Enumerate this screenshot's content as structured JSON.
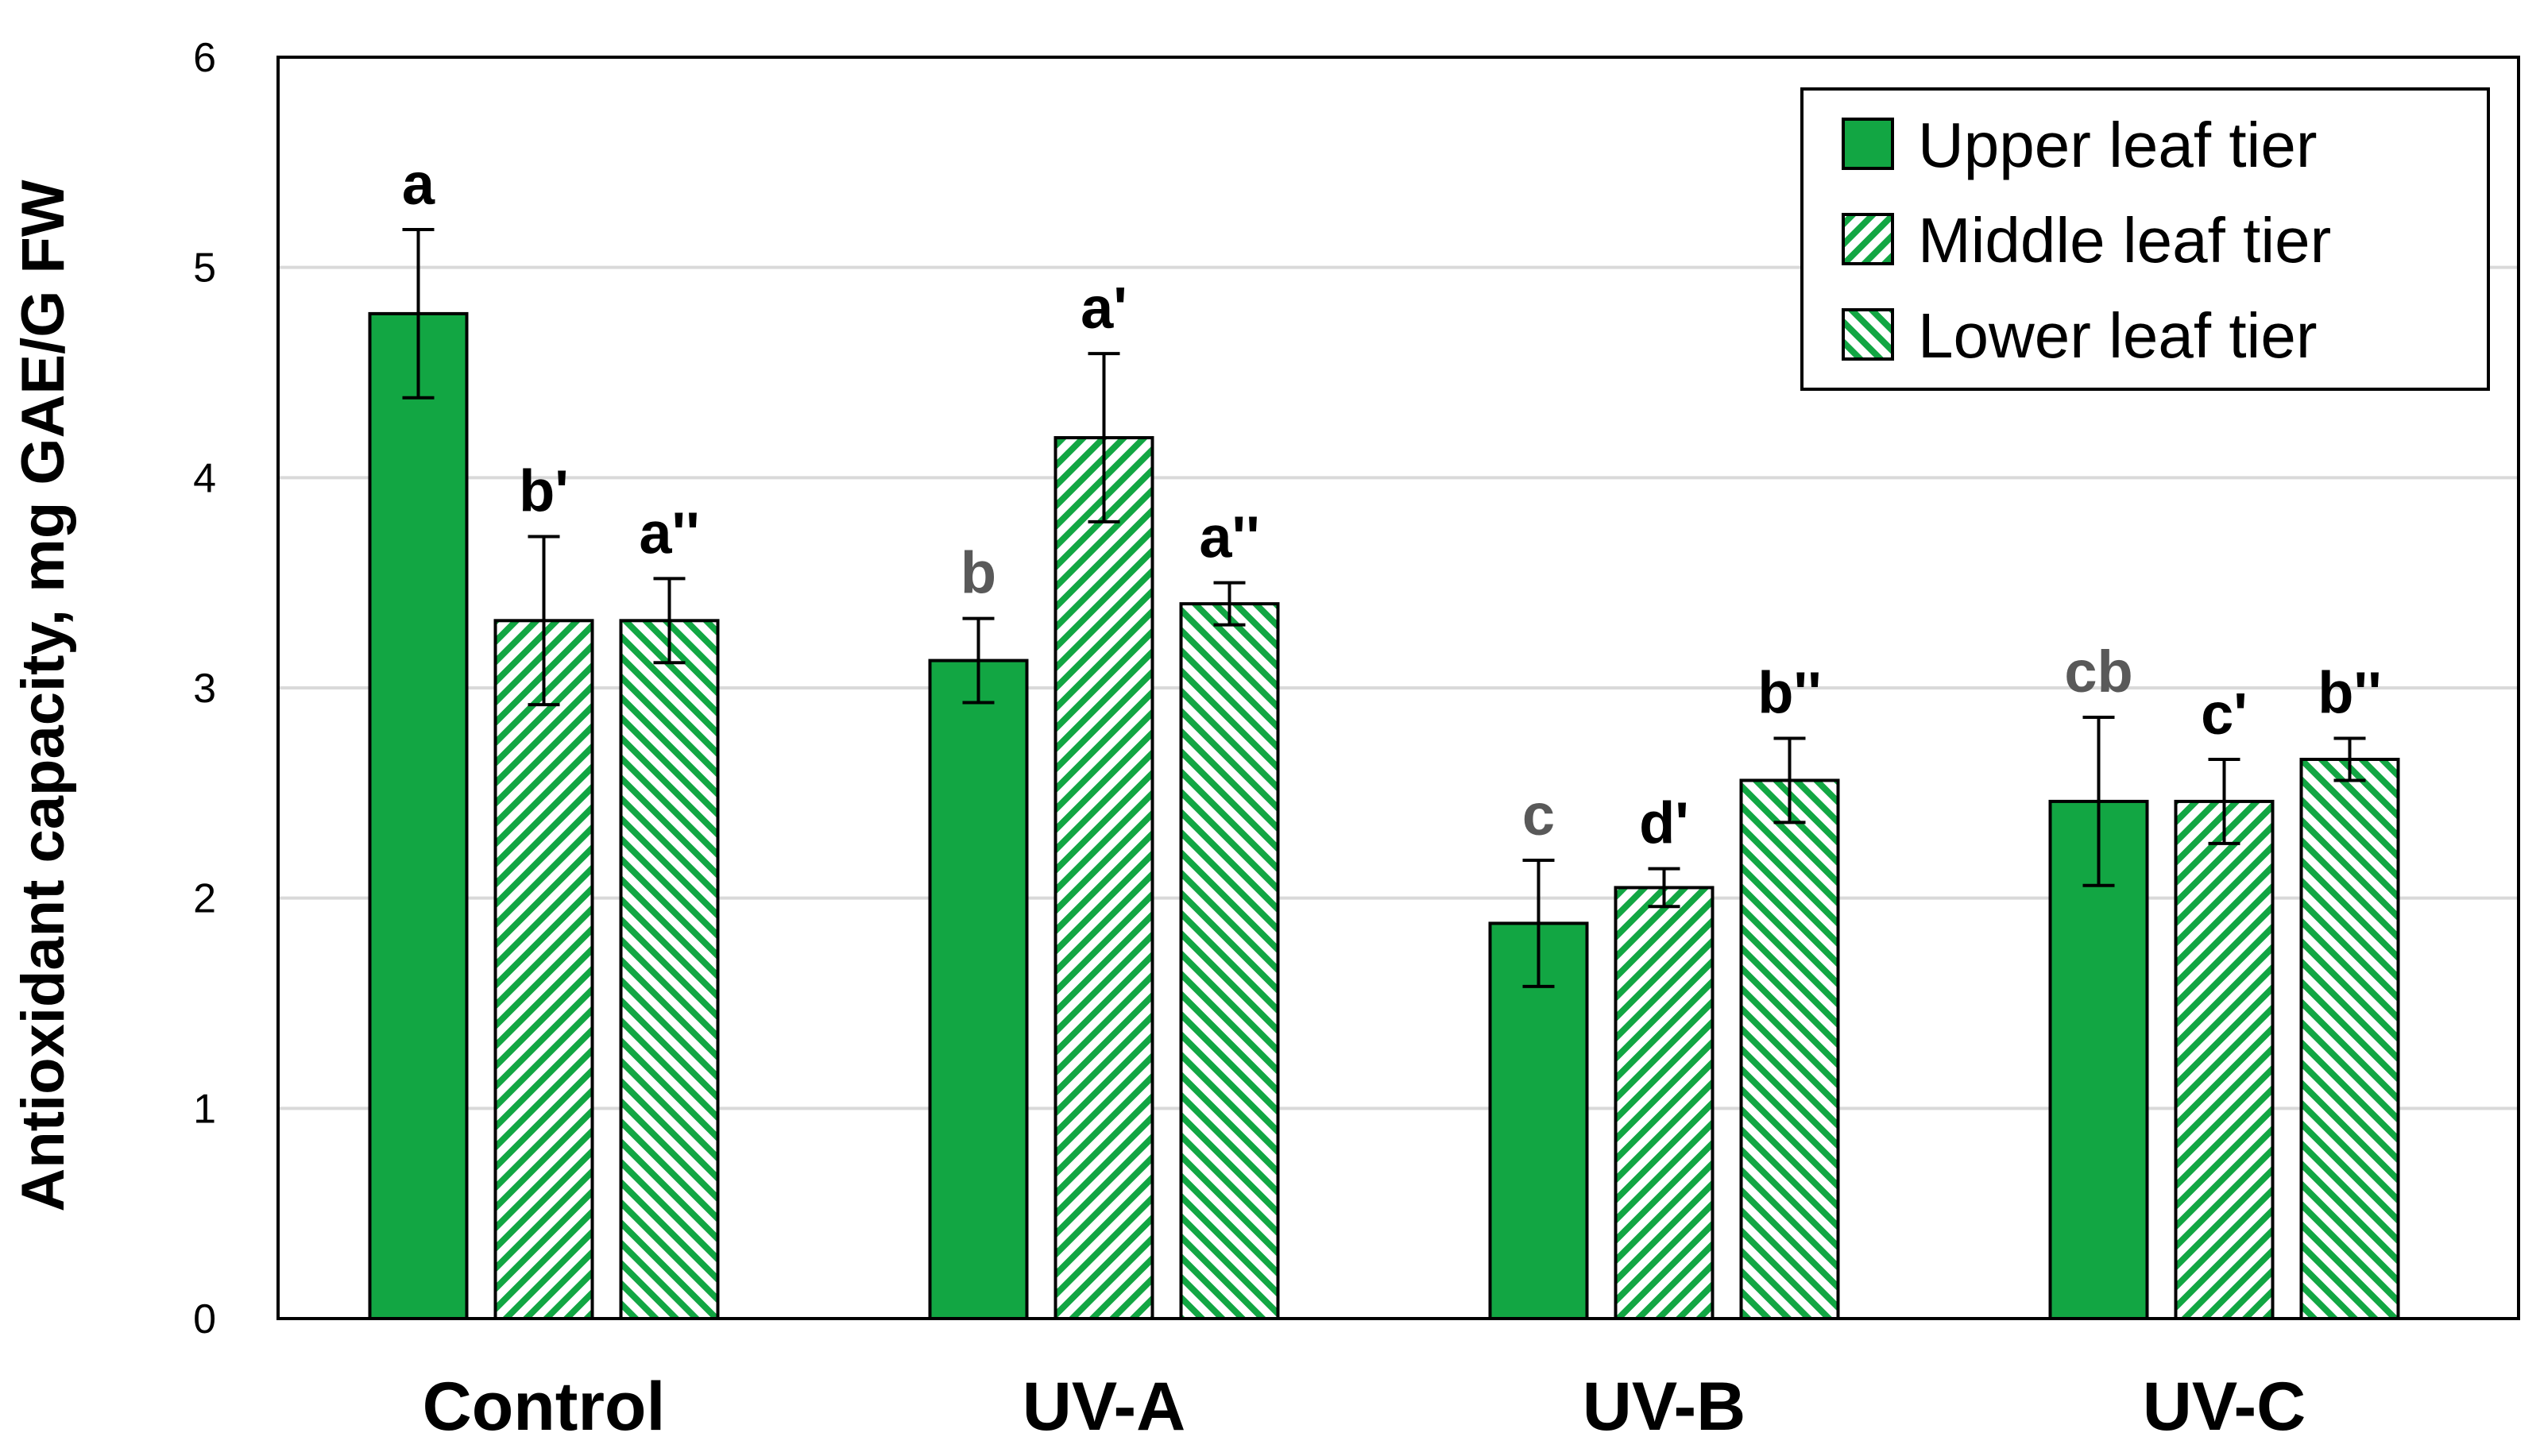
{
  "colors": {
    "bar_fill": "#12a643",
    "bar_stroke": "#000000",
    "hatch_bg": "#ffffff",
    "grid": "#d9d9d9",
    "axis": "#000000",
    "label_dark": "#000000",
    "label_gray": "#595959"
  },
  "chart_data": {
    "type": "bar",
    "title": "",
    "xlabel": "",
    "ylabel": "Antioxidant capacity, mg GAE/G FW",
    "ylim": [
      0,
      6
    ],
    "yticks": [
      "0",
      "1",
      "2",
      "3",
      "4",
      "5",
      "6"
    ],
    "grid": true,
    "legend_position": "top-right",
    "categories": [
      "Control",
      "UV-A",
      "UV-B",
      "UV-C"
    ],
    "series": [
      {
        "name": "Upper leaf tier",
        "pattern": "solid",
        "values": [
          4.78,
          3.13,
          1.88,
          2.46
        ],
        "errors": [
          0.4,
          0.2,
          0.3,
          0.4
        ],
        "labels": [
          "a",
          "b",
          "c",
          "cb"
        ],
        "label_colors": [
          "dark",
          "gray",
          "gray",
          "gray"
        ]
      },
      {
        "name": "Middle leaf tier",
        "pattern": "hatch-down",
        "values": [
          3.32,
          4.19,
          2.05,
          2.46
        ],
        "errors": [
          0.4,
          0.4,
          0.09,
          0.2
        ],
        "labels": [
          "b'",
          "a'",
          "d'",
          "c'"
        ],
        "label_colors": [
          "dark",
          "dark",
          "dark",
          "dark"
        ]
      },
      {
        "name": "Lower leaf tier",
        "pattern": "hatch-up",
        "values": [
          3.32,
          3.4,
          2.56,
          2.66
        ],
        "errors": [
          0.2,
          0.1,
          0.2,
          0.1
        ],
        "labels": [
          "a''",
          "a''",
          "b''",
          "b''"
        ],
        "label_colors": [
          "dark",
          "dark",
          "dark",
          "dark"
        ]
      }
    ]
  }
}
